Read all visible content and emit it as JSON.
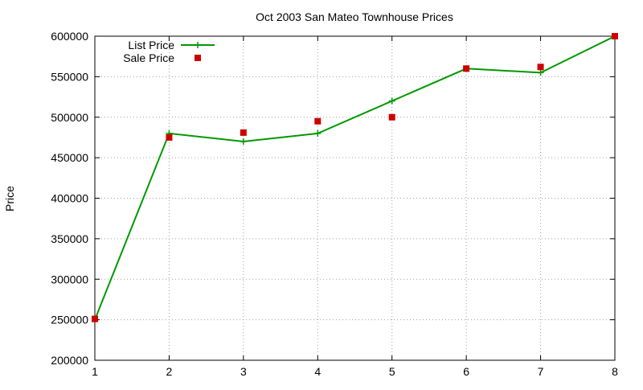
{
  "chart_data": {
    "type": "line",
    "title": "Oct 2003 San Mateo Townhouse Prices",
    "xlabel": "",
    "ylabel": "Price",
    "x": [
      1,
      2,
      3,
      4,
      5,
      6,
      7,
      8
    ],
    "xlim": [
      1,
      8
    ],
    "ylim": [
      200000,
      600000
    ],
    "xticks": [
      1,
      2,
      3,
      4,
      5,
      6,
      7,
      8
    ],
    "yticks": [
      200000,
      250000,
      300000,
      350000,
      400000,
      450000,
      500000,
      550000,
      600000
    ],
    "grid": true,
    "legend_position": "top-left",
    "series": [
      {
        "name": "List Price",
        "style": "line+cross",
        "color": "#009900",
        "values": [
          250000,
          480000,
          470000,
          480000,
          520000,
          560000,
          555000,
          600000
        ]
      },
      {
        "name": "Sale Price",
        "style": "square",
        "color": "#cc0000",
        "values": [
          251000,
          475000,
          481000,
          495000,
          500000,
          560000,
          562000,
          600000
        ]
      }
    ]
  }
}
